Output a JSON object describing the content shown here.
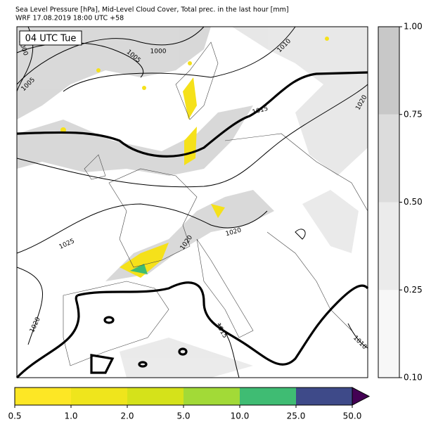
{
  "title": [
    "Sea Level Pressure [hPa], Mid-Level Cloud Cover, Total prec. in the last hour [mm]",
    "WRF 17.08.2019 18:00 UTC +58"
  ],
  "time_label": "04 UTC Tue",
  "contour_labels": [
    "1000",
    "1005",
    "1000",
    "1005",
    "1010",
    "1015",
    "1020",
    "1025",
    "1020",
    "1020",
    "1020",
    "1015",
    "1010"
  ],
  "cloud_colorbar": {
    "colors": [
      "#f7f7f7",
      "#ebebeb",
      "#dcdcdc",
      "#c8c8c8"
    ],
    "ticks": [
      {
        "value": 0.1,
        "label": "0.10"
      },
      {
        "value": 0.25,
        "label": "0.25"
      },
      {
        "value": 0.5,
        "label": "0.50"
      },
      {
        "value": 0.75,
        "label": "0.75"
      },
      {
        "value": 1,
        "label": "1.00"
      }
    ]
  },
  "precip_colorbar": {
    "colors": [
      "#fde725",
      "#efe51c",
      "#d5e21a",
      "#a2da37",
      "#3fbc73",
      "#3e4a89"
    ],
    "extend_color": "#440154",
    "ticks": [
      {
        "value": 0.5,
        "label": "0.5"
      },
      {
        "value": 1,
        "label": "1.0"
      },
      {
        "value": 2,
        "label": "2.0"
      },
      {
        "value": 5,
        "label": "5.0"
      },
      {
        "value": 10,
        "label": "10.0"
      },
      {
        "value": 25,
        "label": "25.0"
      },
      {
        "value": 50,
        "label": "50.0"
      }
    ]
  }
}
